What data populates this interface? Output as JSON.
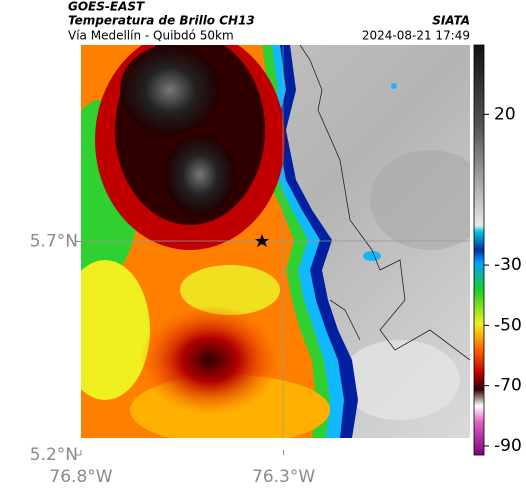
{
  "header": {
    "title": "GOES-EAST",
    "subtitle": "Temperatura de Brillo CH13",
    "region": "Vía Medellín - Quibdó 50km",
    "source": "SIATA",
    "datetime": "2024-08-21 17:49"
  },
  "axes": {
    "xlim": [
      -76.8,
      -75.84
    ],
    "ylim": [
      5.2,
      6.16
    ],
    "xticks": [
      {
        "value": -76.8,
        "label": "76.8°W"
      },
      {
        "value": -76.3,
        "label": "76.3°W"
      }
    ],
    "yticks": [
      {
        "value": 5.2,
        "label": "5.2°N"
      },
      {
        "value": 5.7,
        "label": "5.7°N"
      }
    ]
  },
  "colorbar": {
    "lim": [
      -93,
      43
    ],
    "ticks": [
      20,
      -30,
      -50,
      -70,
      -90
    ]
  }
}
